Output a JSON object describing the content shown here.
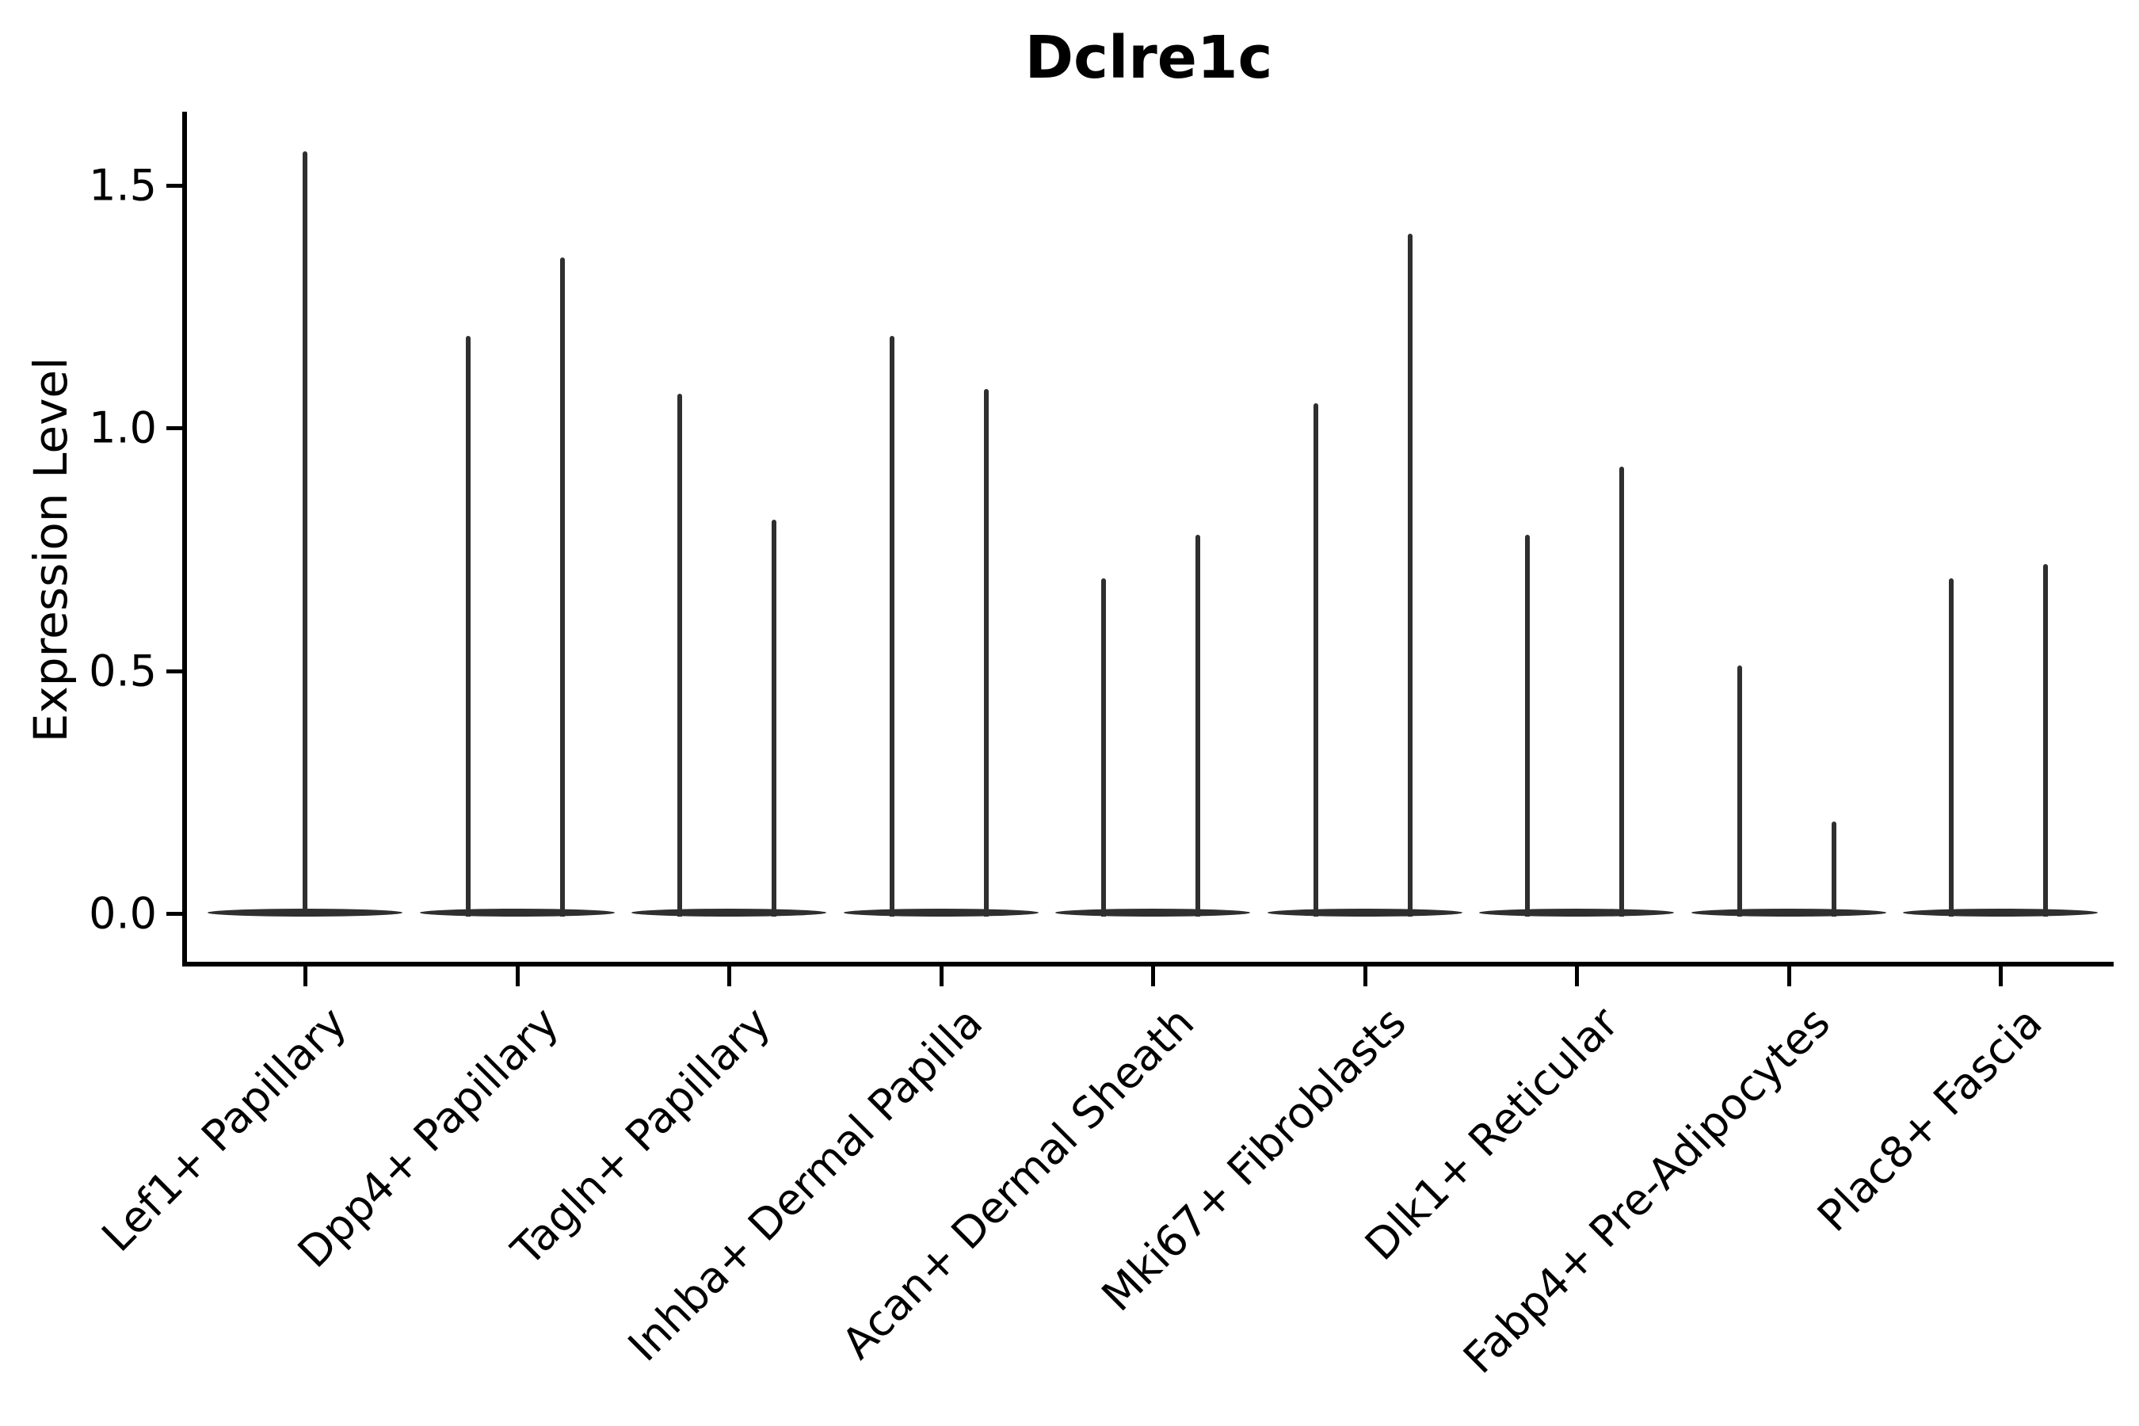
{
  "title": "Dclre1c",
  "y_axis": {
    "label": "Expression Level",
    "tick_labels": [
      "0.0",
      "0.5",
      "1.0",
      "1.5"
    ]
  },
  "chart_data": {
    "type": "violin",
    "title": "Dclre1c",
    "xlabel": "",
    "ylabel": "Expression Level",
    "ylim": [
      -0.1,
      1.65
    ],
    "yticks": [
      0.0,
      0.5,
      1.0,
      1.5
    ],
    "grid": false,
    "legend_position": "none",
    "baseline_value": 0.0,
    "violin_color": "#2f2f2f",
    "categories": [
      "Lef1+ Papillary",
      "Dpp4+ Papillary",
      "Tagln+ Papillary",
      "Inhba+ Dermal Papilla",
      "Acan+ Dermal Sheath",
      "Mki67+ Fibroblasts",
      "Dlk1+ Reticular",
      "Fabp4+ Pre-Adipocytes",
      "Plac8+ Fascia"
    ],
    "groups": [
      {
        "category": "Lef1+ Papillary",
        "violins": [
          {
            "pos": "center",
            "max_expression": 1.57
          }
        ]
      },
      {
        "category": "Dpp4+ Papillary",
        "violins": [
          {
            "pos": "left",
            "max_expression": 1.19
          },
          {
            "pos": "right",
            "max_expression": 1.35
          }
        ]
      },
      {
        "category": "Tagln+ Papillary",
        "violins": [
          {
            "pos": "left",
            "max_expression": 1.07
          },
          {
            "pos": "right",
            "max_expression": 0.81
          }
        ]
      },
      {
        "category": "Inhba+ Dermal Papilla",
        "violins": [
          {
            "pos": "left",
            "max_expression": 1.19
          },
          {
            "pos": "right",
            "max_expression": 1.08
          }
        ]
      },
      {
        "category": "Acan+ Dermal Sheath",
        "violins": [
          {
            "pos": "left",
            "max_expression": 0.69
          },
          {
            "pos": "right",
            "max_expression": 0.78
          }
        ]
      },
      {
        "category": "Mki67+ Fibroblasts",
        "violins": [
          {
            "pos": "left",
            "max_expression": 1.05
          },
          {
            "pos": "right",
            "max_expression": 1.4
          }
        ]
      },
      {
        "category": "Dlk1+ Reticular",
        "violins": [
          {
            "pos": "left",
            "max_expression": 0.78
          },
          {
            "pos": "right",
            "max_expression": 0.92
          }
        ]
      },
      {
        "category": "Fabp4+ Pre-Adipocytes",
        "violins": [
          {
            "pos": "left",
            "max_expression": 0.51
          },
          {
            "pos": "right",
            "max_expression": 0.19
          }
        ]
      },
      {
        "category": "Plac8+ Fascia",
        "violins": [
          {
            "pos": "left",
            "max_expression": 0.69
          },
          {
            "pos": "right",
            "max_expression": 0.72
          }
        ]
      }
    ]
  }
}
